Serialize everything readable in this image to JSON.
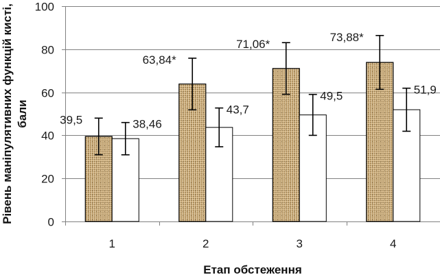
{
  "chart_data": {
    "type": "bar",
    "categories": [
      "1",
      "2",
      "3",
      "4"
    ],
    "series": [
      {
        "values": [
          39.5,
          63.84,
          71.06,
          73.88
        ],
        "labels": [
          "39,5",
          "63,84*",
          "71,06*",
          "73,88*"
        ],
        "errors": [
          8.5,
          12,
          12,
          12.5
        ],
        "fill": "#c9a873",
        "pattern": "burlap"
      },
      {
        "values": [
          38.46,
          43.7,
          49.5,
          51.9
        ],
        "labels": [
          "38,46",
          "43,7",
          "49,5",
          "51,9"
        ],
        "errors": [
          7.5,
          9,
          9.5,
          10
        ],
        "fill": "#ffffff"
      }
    ],
    "xlabel": "Етап обстеження",
    "ylabel_line1": "Рівень маніпулятивних функцій кисті,",
    "ylabel_line2": "бали",
    "ylim": [
      0,
      100
    ],
    "yticks": [
      "0",
      "20",
      "40",
      "60",
      "80",
      "100"
    ],
    "grid": true,
    "colors": {
      "grid": "#808080",
      "axis": "#808080",
      "bar_outline": "#000000",
      "error_bar": "#000000"
    }
  }
}
